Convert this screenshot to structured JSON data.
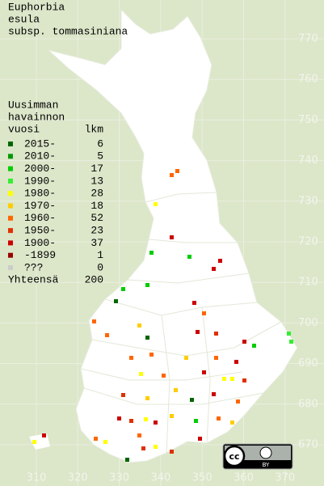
{
  "title": [
    "Euphorbia",
    "esula",
    "subsp. tommasiniana"
  ],
  "legend": {
    "heading": [
      "Uusimman",
      "havainnon",
      "vuosi"
    ],
    "count_heading": "lkm",
    "items": [
      {
        "label": "2015-",
        "count": "6",
        "color": "#006600"
      },
      {
        "label": "2010-",
        "count": "5",
        "color": "#009900"
      },
      {
        "label": "2000-",
        "count": "17",
        "color": "#00cc00"
      },
      {
        "label": "1990-",
        "count": "13",
        "color": "#33ee33"
      },
      {
        "label": "1980-",
        "count": "28",
        "color": "#ffff00"
      },
      {
        "label": "1970-",
        "count": "18",
        "color": "#ffcc00"
      },
      {
        "label": "1960-",
        "count": "52",
        "color": "#ff6600"
      },
      {
        "label": "1950-",
        "count": "23",
        "color": "#e03000"
      },
      {
        "label": "1900-",
        "count": "37",
        "color": "#cc0000"
      },
      {
        "label": "-1899",
        "count": "1",
        "color": "#990000"
      },
      {
        "label": "???",
        "count": "0",
        "color": "#cccccc"
      }
    ],
    "total": {
      "label": "Yhteensä",
      "count": "200"
    }
  },
  "grid": {
    "y_labels": [
      "770",
      "760",
      "750",
      "740",
      "730",
      "720",
      "710",
      "700",
      "690",
      "680",
      "670"
    ],
    "x_labels": [
      "310",
      "320",
      "330",
      "340",
      "350",
      "360",
      "370"
    ]
  },
  "license": {
    "badge": "cc",
    "by": "BY"
  }
}
